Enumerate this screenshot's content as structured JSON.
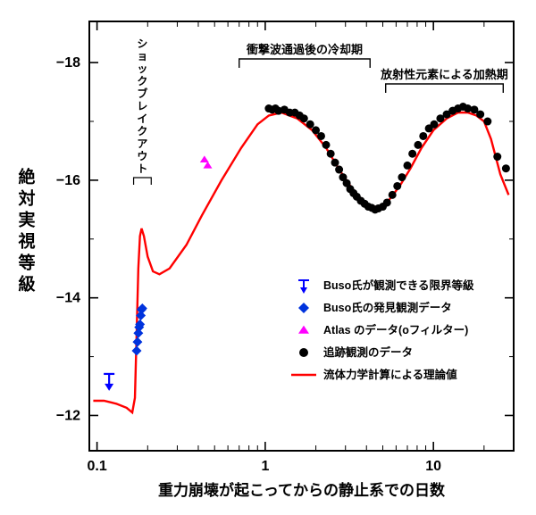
{
  "chart": {
    "type": "scatter+line",
    "x_axis": {
      "label": "重力崩壊が起こってからの静止系での日数",
      "scale": "log",
      "min": 0.09,
      "max": 30,
      "major_ticks": [
        0.1,
        1,
        10
      ],
      "major_labels": [
        "0.1",
        "1",
        "10"
      ],
      "label_fontsize": 17,
      "tick_fontsize": 16
    },
    "y_axis": {
      "label": "絶 対 実 視 等 級",
      "scale": "linear",
      "min": -11.4,
      "max": -18.7,
      "major_ticks": [
        -12,
        -14,
        -16,
        -18
      ],
      "major_labels": [
        "−12",
        "−14",
        "−16",
        "−18"
      ],
      "label_fontsize": 19,
      "tick_fontsize": 16
    },
    "colors": {
      "axis": "#000000",
      "background": "#ffffff",
      "theory": "#ff0000",
      "buso_limit": "#0000ff",
      "buso_data": "#0033dd",
      "atlas": "#ff00ff",
      "followup": "#000000",
      "anno": "#000000"
    },
    "annotations": {
      "shock_breakout": "ショックブレイクアウト",
      "cooling_phase": "衝撃波通過後の冷却期",
      "radioactive_phase": "放射性元素による加熱期"
    },
    "legend": {
      "buso_limit": "Buso氏が観測できる限界等級",
      "buso_data": "Buso氏の発見観測データ",
      "atlas": "Atlas のデータ(oフィルター)",
      "followup": "追跡観測のデータ",
      "theory": "流体力学計算による理論値"
    },
    "series": {
      "theory": [
        [
          0.095,
          -12.25
        ],
        [
          0.11,
          -12.25
        ],
        [
          0.13,
          -12.2
        ],
        [
          0.15,
          -12.13
        ],
        [
          0.162,
          -12.05
        ],
        [
          0.168,
          -12.3
        ],
        [
          0.172,
          -13.4
        ],
        [
          0.176,
          -14.5
        ],
        [
          0.18,
          -15.05
        ],
        [
          0.184,
          -15.18
        ],
        [
          0.19,
          -15.05
        ],
        [
          0.2,
          -14.7
        ],
        [
          0.215,
          -14.45
        ],
        [
          0.235,
          -14.4
        ],
        [
          0.27,
          -14.5
        ],
        [
          0.34,
          -14.9
        ],
        [
          0.42,
          -15.4
        ],
        [
          0.55,
          -16.0
        ],
        [
          0.72,
          -16.55
        ],
        [
          0.9,
          -16.95
        ],
        [
          1.05,
          -17.1
        ],
        [
          1.25,
          -17.15
        ],
        [
          1.55,
          -17.05
        ],
        [
          1.9,
          -16.85
        ],
        [
          2.3,
          -16.55
        ],
        [
          2.8,
          -16.15
        ],
        [
          3.3,
          -15.85
        ],
        [
          3.8,
          -15.65
        ],
        [
          4.3,
          -15.55
        ],
        [
          4.8,
          -15.55
        ],
        [
          5.4,
          -15.65
        ],
        [
          6.3,
          -15.9
        ],
        [
          7.3,
          -16.2
        ],
        [
          8.5,
          -16.55
        ],
        [
          10.0,
          -16.85
        ],
        [
          12.0,
          -17.05
        ],
        [
          14.0,
          -17.15
        ],
        [
          16.0,
          -17.15
        ],
        [
          18.0,
          -17.1
        ],
        [
          20.0,
          -17.0
        ],
        [
          22.0,
          -16.7
        ],
        [
          25.0,
          -16.1
        ],
        [
          28.0,
          -15.75
        ]
      ],
      "buso_limit": [
        [
          0.118,
          -12.6
        ]
      ],
      "buso_data": [
        [
          0.172,
          -13.1
        ],
        [
          0.174,
          -13.25
        ],
        [
          0.176,
          -13.4
        ],
        [
          0.178,
          -13.5
        ],
        [
          0.18,
          -13.55
        ],
        [
          0.182,
          -13.7
        ],
        [
          0.184,
          -13.8
        ],
        [
          0.186,
          -13.82
        ]
      ],
      "atlas": [
        [
          0.435,
          -16.35
        ],
        [
          0.455,
          -16.25
        ]
      ],
      "followup": [
        [
          1.05,
          -17.22
        ],
        [
          1.1,
          -17.2
        ],
        [
          1.15,
          -17.22
        ],
        [
          1.2,
          -17.18
        ],
        [
          1.3,
          -17.2
        ],
        [
          1.4,
          -17.15
        ],
        [
          1.5,
          -17.15
        ],
        [
          1.6,
          -17.1
        ],
        [
          1.7,
          -17.05
        ],
        [
          1.85,
          -16.95
        ],
        [
          2.0,
          -16.85
        ],
        [
          2.15,
          -16.75
        ],
        [
          2.3,
          -16.6
        ],
        [
          2.45,
          -16.45
        ],
        [
          2.6,
          -16.3
        ],
        [
          2.75,
          -16.18
        ],
        [
          2.9,
          -16.05
        ],
        [
          3.05,
          -15.95
        ],
        [
          3.2,
          -15.85
        ],
        [
          3.35,
          -15.78
        ],
        [
          3.5,
          -15.72
        ],
        [
          3.7,
          -15.65
        ],
        [
          3.9,
          -15.6
        ],
        [
          4.1,
          -15.55
        ],
        [
          4.3,
          -15.53
        ],
        [
          4.5,
          -15.5
        ],
        [
          4.7,
          -15.52
        ],
        [
          5.0,
          -15.55
        ],
        [
          5.3,
          -15.62
        ],
        [
          5.7,
          -15.75
        ],
        [
          6.1,
          -15.9
        ],
        [
          6.5,
          -16.05
        ],
        [
          7.0,
          -16.25
        ],
        [
          7.5,
          -16.45
        ],
        [
          8.1,
          -16.6
        ],
        [
          8.7,
          -16.75
        ],
        [
          9.4,
          -16.88
        ],
        [
          10.1,
          -16.95
        ],
        [
          11.0,
          -17.05
        ],
        [
          12.0,
          -17.12
        ],
        [
          13.0,
          -17.18
        ],
        [
          14.0,
          -17.22
        ],
        [
          15.0,
          -17.25
        ],
        [
          16.0,
          -17.22
        ],
        [
          17.5,
          -17.2
        ],
        [
          19.0,
          -17.12
        ],
        [
          21.0,
          -17.0
        ],
        [
          24.0,
          -16.4
        ],
        [
          27.0,
          -16.2
        ]
      ]
    }
  }
}
